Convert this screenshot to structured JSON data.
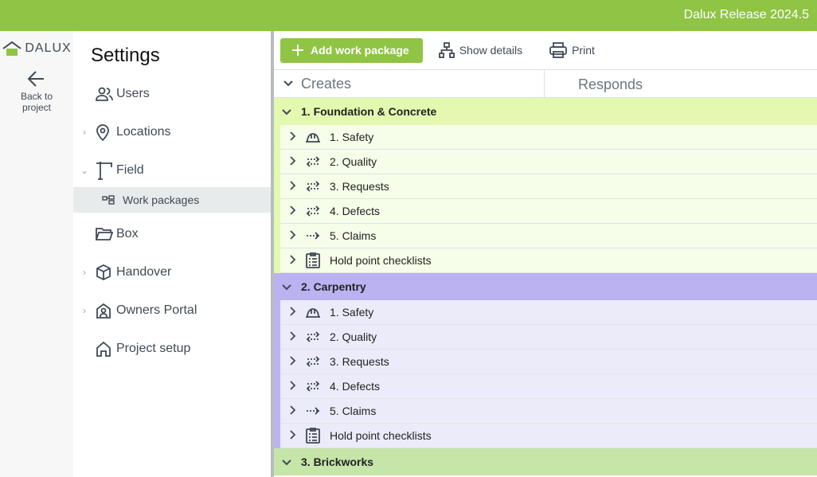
{
  "app": {
    "release": "Dalux Release 2024.5",
    "logo": "DALUX",
    "back_label": "Back to project"
  },
  "settings": {
    "title": "Settings",
    "items": [
      {
        "label": "Users",
        "icon": "users-icon",
        "chevron": false
      },
      {
        "label": "Locations",
        "icon": "location-pin-icon",
        "chevron": "right"
      },
      {
        "label": "Field",
        "icon": "crane-icon",
        "chevron": "down"
      },
      {
        "label": "Work packages",
        "icon": "work-packages-icon",
        "sub": true
      },
      {
        "label": "Box",
        "icon": "folder-icon",
        "chevron": false
      },
      {
        "label": "Handover",
        "icon": "box-icon",
        "chevron": "right"
      },
      {
        "label": "Owners Portal",
        "icon": "house-person-icon",
        "chevron": "right"
      },
      {
        "label": "Project setup",
        "icon": "home-icon",
        "chevron": false
      }
    ]
  },
  "toolbar": {
    "add": "Add work package",
    "details": "Show details",
    "print": "Print"
  },
  "columns": {
    "creates": "Creates",
    "responds": "Responds"
  },
  "groups": [
    {
      "name": "1. Foundation & Concrete",
      "header_color": "#e3f9b0",
      "row_color": "#f6fde9",
      "items": [
        "1. Safety",
        "2. Quality",
        "3. Requests",
        "4. Defects",
        "5. Claims",
        "Hold point checklists"
      ]
    },
    {
      "name": "2. Carpentry",
      "header_color": "#bbb2f2",
      "row_color": "#ecebfa",
      "items": [
        "1. Safety",
        "2. Quality",
        "3. Requests",
        "4. Defects",
        "5. Claims",
        "Hold point checklists"
      ]
    },
    {
      "name": "3. Brickworks",
      "header_color": "#c6e5a9",
      "row_color": "#eef7e4",
      "items": []
    }
  ],
  "item_icons": [
    "hard-hat-icon",
    "exchange-arrows-icon",
    "exchange-arrows-icon",
    "exchange-arrows-icon",
    "dotted-arrow-icon",
    "checklist-icon"
  ]
}
